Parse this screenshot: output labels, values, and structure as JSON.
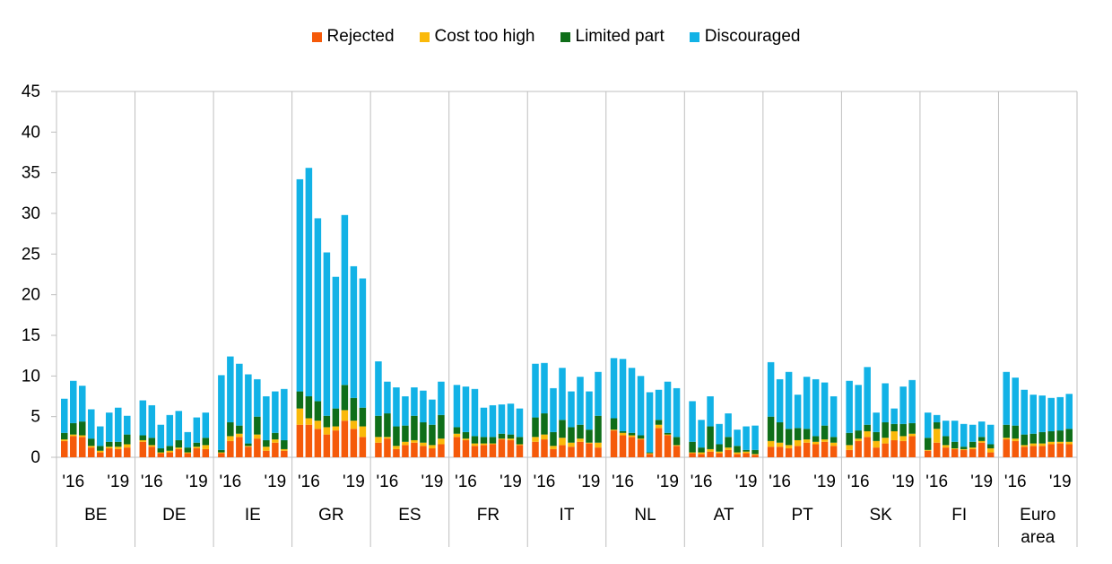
{
  "chart_data": {
    "type": "bar",
    "stacked": true,
    "title": "",
    "xlabel": "",
    "ylabel": "",
    "ylim": [
      0,
      45
    ],
    "yticks": [
      "0",
      "5",
      "10",
      "15",
      "20",
      "25",
      "30",
      "35",
      "40",
      "45"
    ],
    "grid": false,
    "legend_position": "top-center",
    "series": [
      {
        "name": "Rejected",
        "color": "#F55A0A"
      },
      {
        "name": "Cost too high",
        "color": "#FAB90A"
      },
      {
        "name": "Limited part",
        "color": "#0F6E19"
      },
      {
        "name": "Discouraged",
        "color": "#12B2E6"
      }
    ],
    "year_labels": [
      "'16",
      "'19"
    ],
    "groups": [
      {
        "name": "BE",
        "label_lines": [
          "BE"
        ],
        "bars": [
          [
            2.0,
            0.2,
            0.8,
            4.2
          ],
          [
            2.6,
            0.2,
            1.4,
            5.2
          ],
          [
            2.5,
            0.2,
            1.7,
            4.4
          ],
          [
            1.2,
            0.2,
            0.9,
            3.6
          ],
          [
            0.6,
            0.2,
            0.6,
            2.4
          ],
          [
            1.1,
            0.2,
            0.6,
            3.6
          ],
          [
            1.0,
            0.3,
            0.6,
            4.2
          ],
          [
            1.2,
            0.4,
            1.2,
            2.3
          ]
        ]
      },
      {
        "name": "DE",
        "label_lines": [
          "DE"
        ],
        "bars": [
          [
            1.9,
            0.2,
            0.6,
            4.3
          ],
          [
            1.3,
            0.2,
            0.9,
            4.0
          ],
          [
            0.5,
            0.1,
            0.5,
            2.9
          ],
          [
            0.6,
            0.2,
            0.6,
            3.8
          ],
          [
            1.0,
            0.2,
            0.9,
            3.6
          ],
          [
            0.5,
            0.1,
            0.6,
            1.9
          ],
          [
            1.1,
            0.2,
            0.5,
            3.1
          ],
          [
            1.0,
            0.5,
            0.9,
            3.1
          ]
        ]
      },
      {
        "name": "IE",
        "label_lines": [
          "IE"
        ],
        "bars": [
          [
            0.5,
            0.1,
            0.3,
            9.2
          ],
          [
            2.0,
            0.6,
            1.7,
            8.1
          ],
          [
            2.5,
            0.4,
            1.0,
            7.6
          ],
          [
            1.3,
            0.1,
            0.3,
            8.5
          ],
          [
            2.3,
            0.5,
            2.2,
            4.6
          ],
          [
            0.8,
            0.5,
            0.8,
            5.4
          ],
          [
            1.8,
            0.4,
            0.8,
            5.1
          ],
          [
            0.8,
            0.2,
            1.1,
            6.3
          ]
        ]
      },
      {
        "name": "GR",
        "label_lines": [
          "GR"
        ],
        "bars": [
          [
            4.0,
            2.0,
            2.1,
            26.1
          ],
          [
            4.0,
            0.8,
            2.7,
            28.1
          ],
          [
            3.5,
            1.0,
            2.4,
            22.5
          ],
          [
            2.8,
            0.9,
            1.4,
            20.1
          ],
          [
            3.3,
            0.5,
            2.2,
            16.2
          ],
          [
            4.5,
            1.3,
            3.1,
            20.9
          ],
          [
            3.5,
            1.0,
            2.8,
            16.2
          ],
          [
            2.5,
            1.3,
            2.3,
            15.9
          ]
        ]
      },
      {
        "name": "ES",
        "label_lines": [
          "ES"
        ],
        "bars": [
          [
            1.8,
            0.7,
            2.6,
            6.7
          ],
          [
            2.3,
            0.2,
            2.9,
            3.9
          ],
          [
            1.0,
            0.4,
            2.4,
            4.8
          ],
          [
            1.5,
            0.4,
            2.0,
            3.6
          ],
          [
            1.8,
            0.3,
            3.0,
            3.5
          ],
          [
            1.4,
            0.4,
            2.5,
            3.9
          ],
          [
            1.1,
            0.4,
            2.5,
            3.1
          ],
          [
            1.6,
            0.7,
            2.9,
            4.1
          ]
        ]
      },
      {
        "name": "FR",
        "label_lines": [
          "FR"
        ],
        "bars": [
          [
            2.5,
            0.4,
            0.8,
            5.2
          ],
          [
            2.1,
            0.2,
            0.8,
            5.6
          ],
          [
            1.4,
            0.3,
            0.9,
            5.8
          ],
          [
            1.5,
            0.2,
            0.8,
            3.6
          ],
          [
            1.6,
            0.1,
            0.8,
            3.9
          ],
          [
            2.2,
            0.1,
            0.6,
            3.6
          ],
          [
            2.1,
            0.2,
            0.5,
            3.8
          ],
          [
            1.5,
            0.1,
            0.9,
            3.5
          ]
        ]
      },
      {
        "name": "IT",
        "label_lines": [
          "IT"
        ],
        "bars": [
          [
            1.9,
            0.6,
            2.4,
            6.6
          ],
          [
            2.2,
            0.6,
            2.6,
            6.2
          ],
          [
            1.0,
            0.4,
            1.7,
            5.4
          ],
          [
            1.5,
            0.9,
            2.2,
            6.4
          ],
          [
            1.3,
            0.5,
            1.9,
            4.4
          ],
          [
            1.9,
            0.4,
            1.7,
            5.9
          ],
          [
            1.7,
            0.1,
            1.6,
            4.7
          ],
          [
            1.2,
            0.6,
            3.3,
            5.4
          ]
        ]
      },
      {
        "name": "NL",
        "label_lines": [
          "NL"
        ],
        "bars": [
          [
            3.3,
            0.1,
            1.4,
            7.4
          ],
          [
            2.7,
            0.3,
            0.2,
            8.9
          ],
          [
            2.5,
            0.2,
            0.3,
            8.0
          ],
          [
            2.2,
            0.1,
            0.4,
            7.3
          ],
          [
            0.4,
            0.1,
            0.1,
            7.4
          ],
          [
            3.6,
            0.4,
            0.6,
            3.7
          ],
          [
            2.7,
            0.1,
            0.2,
            6.3
          ],
          [
            1.4,
            0.1,
            1.0,
            6.0
          ]
        ]
      },
      {
        "name": "AT",
        "label_lines": [
          "AT"
        ],
        "bars": [
          [
            0.5,
            0.1,
            1.3,
            5.0
          ],
          [
            0.4,
            0.2,
            0.6,
            3.4
          ],
          [
            0.7,
            0.3,
            2.8,
            3.7
          ],
          [
            0.5,
            0.2,
            0.9,
            2.5
          ],
          [
            0.9,
            0.3,
            1.3,
            2.9
          ],
          [
            0.4,
            0.2,
            0.8,
            2.0
          ],
          [
            0.5,
            0.2,
            0.2,
            2.9
          ],
          [
            0.3,
            0.1,
            0.5,
            3.0
          ]
        ]
      },
      {
        "name": "PT",
        "label_lines": [
          "PT"
        ],
        "bars": [
          [
            1.3,
            0.7,
            3.0,
            6.7
          ],
          [
            1.3,
            0.5,
            2.5,
            5.3
          ],
          [
            1.1,
            0.4,
            2.0,
            7.0
          ],
          [
            1.4,
            0.7,
            1.5,
            4.1
          ],
          [
            1.8,
            0.4,
            1.3,
            6.4
          ],
          [
            1.6,
            0.3,
            0.7,
            7.0
          ],
          [
            1.9,
            0.3,
            1.7,
            5.3
          ],
          [
            1.4,
            0.4,
            0.7,
            5.0
          ]
        ]
      },
      {
        "name": "SK",
        "label_lines": [
          "SK"
        ],
        "bars": [
          [
            0.9,
            0.6,
            1.5,
            6.4
          ],
          [
            2.0,
            0.3,
            1.0,
            5.6
          ],
          [
            2.5,
            0.7,
            0.8,
            7.1
          ],
          [
            1.2,
            0.8,
            1.1,
            2.4
          ],
          [
            1.7,
            0.7,
            1.9,
            4.8
          ],
          [
            2.1,
            1.1,
            0.9,
            1.9
          ],
          [
            2.0,
            0.6,
            1.5,
            4.6
          ],
          [
            2.6,
            0.3,
            1.3,
            5.3
          ]
        ]
      },
      {
        "name": "FI",
        "label_lines": [
          "FI"
        ],
        "bars": [
          [
            0.8,
            0.1,
            1.5,
            3.1
          ],
          [
            1.8,
            1.7,
            0.8,
            0.9
          ],
          [
            1.2,
            0.3,
            1.1,
            1.9
          ],
          [
            1.0,
            0.1,
            0.8,
            2.6
          ],
          [
            0.9,
            0.1,
            0.3,
            2.8
          ],
          [
            1.0,
            0.2,
            0.7,
            2.1
          ],
          [
            1.8,
            0.2,
            0.5,
            1.9
          ],
          [
            0.6,
            0.5,
            0.5,
            2.4
          ]
        ]
      },
      {
        "name": "Euro area",
        "label_lines": [
          "Euro",
          "area"
        ],
        "bars": [
          [
            2.2,
            0.2,
            1.6,
            6.5
          ],
          [
            2.0,
            0.3,
            1.6,
            5.9
          ],
          [
            1.3,
            0.2,
            1.3,
            5.5
          ],
          [
            1.4,
            0.3,
            1.2,
            4.8
          ],
          [
            1.4,
            0.3,
            1.4,
            4.5
          ],
          [
            1.6,
            0.3,
            1.3,
            4.1
          ],
          [
            1.7,
            0.2,
            1.4,
            4.1
          ],
          [
            1.6,
            0.3,
            1.6,
            4.3
          ]
        ]
      }
    ]
  }
}
